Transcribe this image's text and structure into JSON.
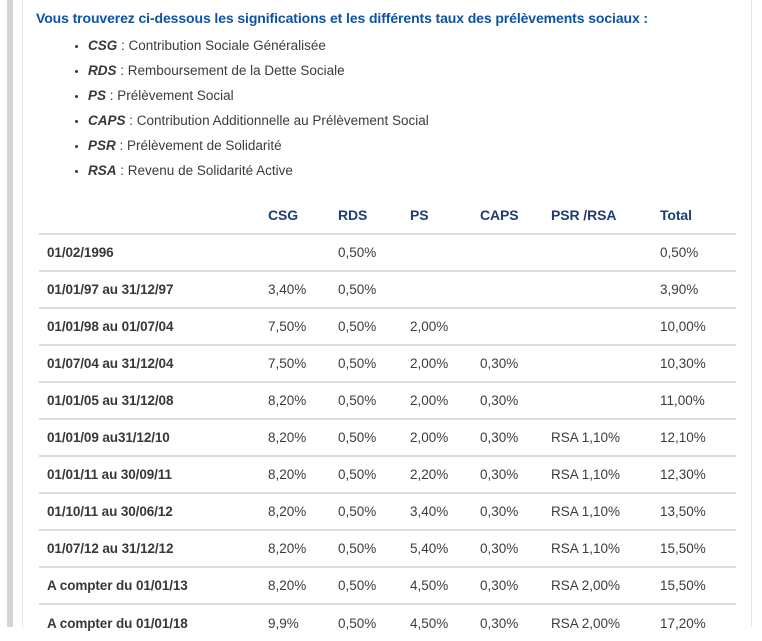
{
  "intro": {
    "text": "Vous trouverez ci-dessous les significations et les différents taux des prélèvements sociaux :"
  },
  "definitions": {
    "separator": " : ",
    "items": [
      {
        "term": "CSG",
        "description": "Contribution Sociale Généralisée"
      },
      {
        "term": "RDS",
        "description": "Remboursement de la Dette Sociale"
      },
      {
        "term": "PS",
        "description": "Prélèvement Social"
      },
      {
        "term": "CAPS",
        "description": "Contribution Additionnelle au Prélèvement Social"
      },
      {
        "term": "PSR",
        "description": "Prélèvement de Solidarité"
      },
      {
        "term": "RSA",
        "description": "Revenu de Solidarité Active"
      }
    ]
  },
  "rates_table": {
    "columns": [
      "",
      "CSG",
      "RDS",
      "PS",
      "CAPS",
      "PSR /RSA",
      "Total"
    ],
    "rows": [
      {
        "period": "01/02/1996",
        "values": [
          "",
          "0,50%",
          "",
          "",
          "",
          "0,50%"
        ]
      },
      {
        "period": "01/01/97 au 31/12/97",
        "values": [
          "3,40%",
          "0,50%",
          "",
          "",
          "",
          "3,90%"
        ]
      },
      {
        "period": "01/01/98 au 01/07/04",
        "values": [
          "7,50%",
          "0,50%",
          "2,00%",
          "",
          "",
          "10,00%"
        ]
      },
      {
        "period": "01/07/04 au 31/12/04",
        "values": [
          "7,50%",
          "0,50%",
          "2,00%",
          "0,30%",
          "",
          "10,30%"
        ]
      },
      {
        "period": "01/01/05 au 31/12/08",
        "values": [
          "8,20%",
          "0,50%",
          "2,00%",
          "0,30%",
          "",
          "11,00%"
        ]
      },
      {
        "period": "01/01/09 au31/12/10",
        "values": [
          "8,20%",
          "0,50%",
          "2,00%",
          "0,30%",
          "RSA 1,10%",
          "12,10%"
        ]
      },
      {
        "period": "01/01/11 au 30/09/11",
        "values": [
          "8,20%",
          "0,50%",
          "2,20%",
          "0,30%",
          "RSA 1,10%",
          "12,30%"
        ]
      },
      {
        "period": "01/10/11 au 30/06/12",
        "values": [
          "8,20%",
          "0,50%",
          "3,40%",
          "0,30%",
          "RSA 1,10%",
          "13,50%"
        ]
      },
      {
        "period": "01/07/12 au 31/12/12",
        "values": [
          "8,20%",
          "0,50%",
          "5,40%",
          "0,30%",
          "RSA 1,10%",
          "15,50%"
        ]
      },
      {
        "period": "A compter du 01/01/13",
        "values": [
          "8,20%",
          "0,50%",
          "4,50%",
          "0,30%",
          "RSA 2,00%",
          "15,50%"
        ]
      },
      {
        "period": "A compter du 01/01/18",
        "values": [
          "9,9%",
          "0,50%",
          "4,50%",
          "0,30%",
          "RSA 2,00%",
          "17,20%"
        ]
      }
    ]
  },
  "colors": {
    "intro_blue": "#0d53a5",
    "header_navy": "#1d3e74",
    "body_text": "#3c3c3b",
    "term_text": "#383837",
    "divider": "#dcdcdc",
    "border": "#e3e3e3",
    "strip": "#d4d4d4"
  }
}
